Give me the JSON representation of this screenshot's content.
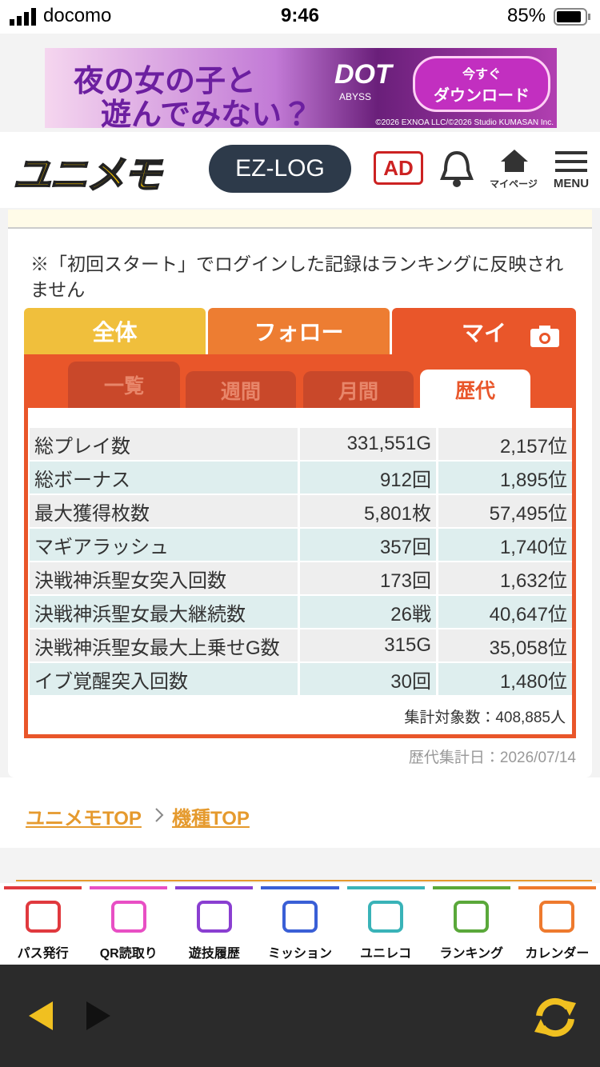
{
  "status_bar": {
    "carrier": "docomo",
    "time": "9:46",
    "battery": "85%"
  },
  "ad_banner": {
    "headline_1": "夜の女の子と",
    "headline_2": "遊んでみない？",
    "logo": "DOT",
    "logo_sub": "ABYSS",
    "button_1": "今すぐ",
    "button_2": "ダウンロード",
    "copyright": "©2026 EXNOA LLC/©2026 Studio KUMASAN Inc."
  },
  "header": {
    "logo": "ユニメモ",
    "ezlog": "EZ-LOG",
    "ad": "AD",
    "mypage": "マイページ",
    "menu": "MENU"
  },
  "notice": "※「初回スタート」でログインした記録はランキングに反映されません",
  "tabs": [
    "全体",
    "フォロー",
    "マイ"
  ],
  "sub_tabs": [
    "一覧",
    "週間",
    "月間",
    "歴代"
  ],
  "table": {
    "rows": [
      [
        "総プレイ数",
        "331,551G",
        "2,157位"
      ],
      [
        "総ボーナス",
        "912回",
        "1,895位"
      ],
      [
        "最大獲得枚数",
        "5,801枚",
        "57,495位"
      ],
      [
        "マギアラッシュ",
        "357回",
        "1,740位"
      ],
      [
        "決戦神浜聖女突入回数",
        "173回",
        "1,632位"
      ],
      [
        "決戦神浜聖女最大継続数",
        "26戦",
        "40,647位"
      ],
      [
        "決戦神浜聖女最大上乗せG数",
        "315G",
        "35,058位"
      ],
      [
        "イブ覚醒突入回数",
        "30回",
        "1,480位"
      ]
    ]
  },
  "total": "集計対象数：408,885人",
  "date": "歴代集計日：2026/07/14",
  "breadcrumb": [
    "ユニメモTOP",
    "機種TOP"
  ],
  "bottom_nav": [
    {
      "label": "パス発行",
      "color": "#e0393e"
    },
    {
      "label": "QR読取り",
      "color": "#e84fc4"
    },
    {
      "label": "遊技履歴",
      "color": "#8a3fd1"
    },
    {
      "label": "ミッション",
      "color": "#3a5fd6"
    },
    {
      "label": "ユニレコ",
      "color": "#39b3b8"
    },
    {
      "label": "ランキング",
      "color": "#5aa83a"
    },
    {
      "label": "カレンダー",
      "color": "#ee7a2e"
    }
  ]
}
